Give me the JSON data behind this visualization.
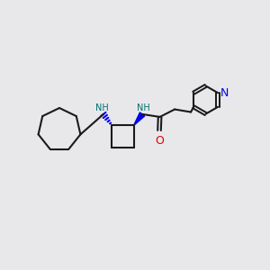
{
  "bg_color": "#e8e8eb",
  "bond_color": "#1a1a1a",
  "N_color": "#0000ee",
  "NH_color": "#007070",
  "O_color": "#dd0000",
  "pyridine_N_color": "#0000ee",
  "line_width": 1.5,
  "figsize": [
    3.0,
    3.0
  ],
  "dpi": 100,
  "xlim": [
    0,
    10
  ],
  "ylim": [
    0,
    10
  ]
}
